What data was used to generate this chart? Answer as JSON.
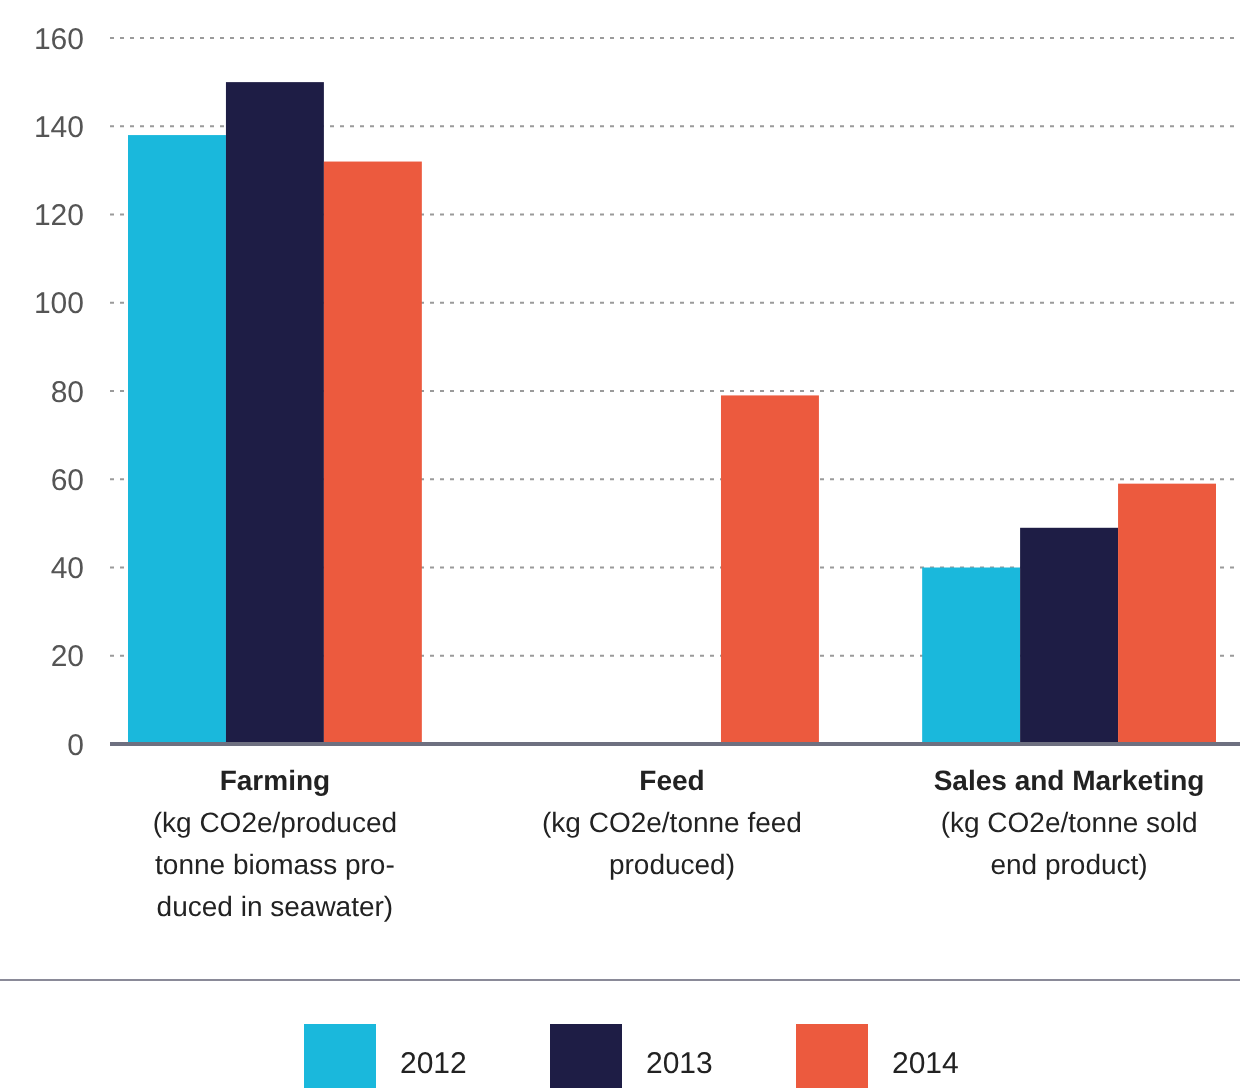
{
  "chart_data": {
    "type": "bar",
    "categories": [
      "Farming\n(kg CO2e/produced\ntonne biomass pro-\nduced in seawater)",
      "Feed\n(kg CO2e/tonne feed\nproduced)",
      "Sales and Marketing\n(kg CO2e/tonne sold\nend product)"
    ],
    "series": [
      {
        "name": "2012",
        "color": "#1ab8dc",
        "values": [
          138,
          null,
          40
        ]
      },
      {
        "name": "2013",
        "color": "#1e1d45",
        "values": [
          150,
          null,
          49
        ]
      },
      {
        "name": "2014",
        "color": "#ec5a3e",
        "values": [
          132,
          79,
          59
        ]
      }
    ],
    "ylim": [
      0,
      160
    ],
    "yticks": [
      0,
      20,
      40,
      60,
      80,
      100,
      120,
      140,
      160
    ],
    "grid": "y",
    "legend": "bottom"
  }
}
